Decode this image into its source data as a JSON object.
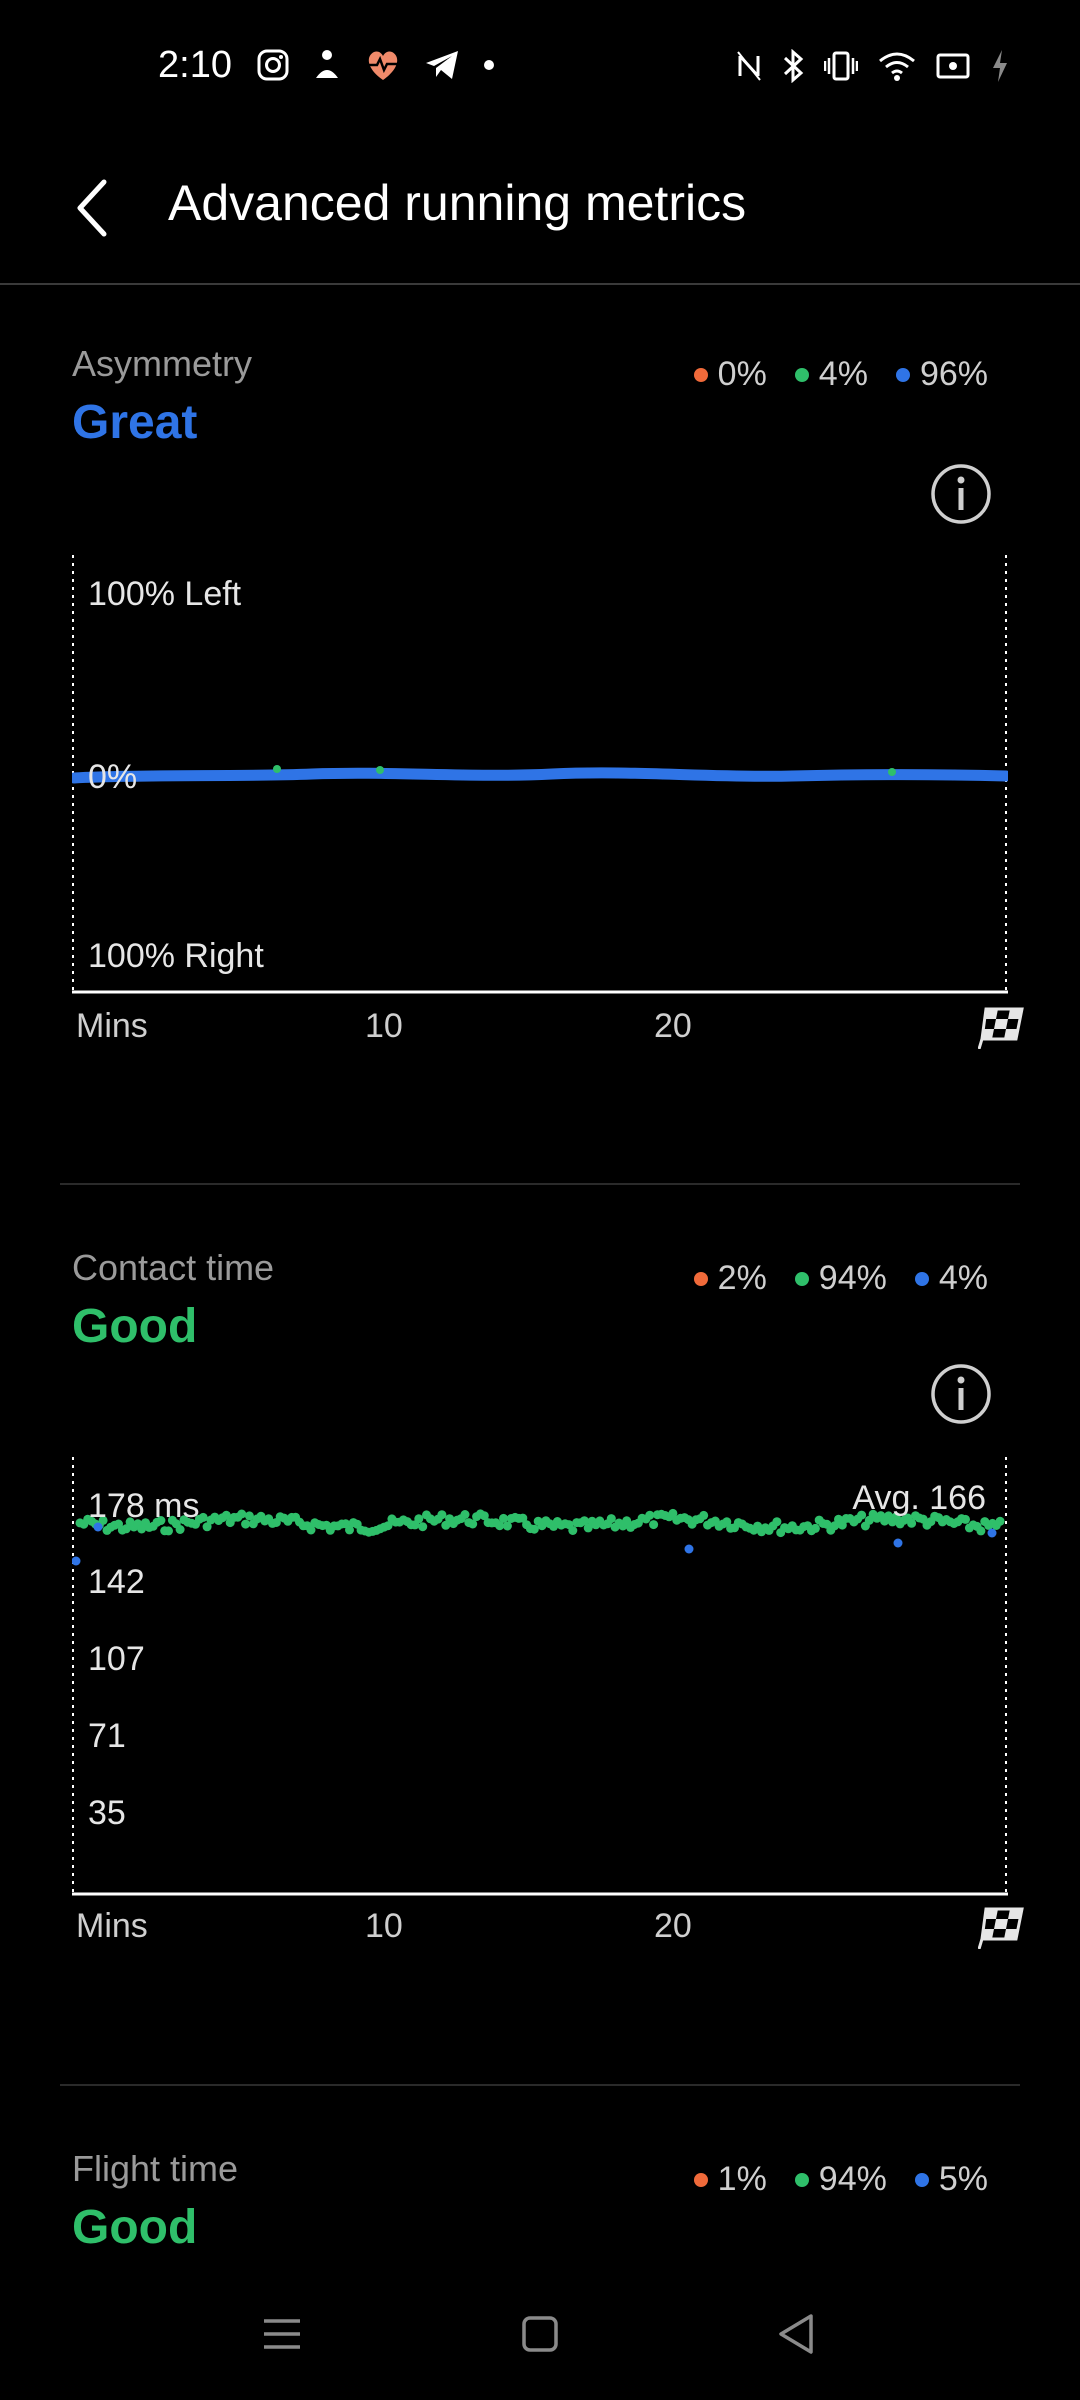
{
  "status_bar": {
    "time": "2:10"
  },
  "header": {
    "title": "Advanced running metrics"
  },
  "colors": {
    "orange": "#f06a3a",
    "green": "#2fbf6a",
    "blue": "#2f74e6",
    "grey": "#9a9a9a"
  },
  "sections": [
    {
      "name": "Asymmetry",
      "rating": "Great",
      "legend": [
        "0%",
        "4%",
        "96%"
      ],
      "y_labels": {
        "top": "100% Left",
        "mid": "0%",
        "bottom": "100% Right"
      },
      "x_labels": [
        "Mins",
        "10",
        "20"
      ]
    },
    {
      "name": "Contact time",
      "rating": "Good",
      "legend": [
        "2%",
        "94%",
        "4%"
      ],
      "y_labels": [
        "178 ms",
        "142",
        "107",
        "71",
        "35"
      ],
      "avg_label": "Avg. 166",
      "x_labels": [
        "Mins",
        "10",
        "20"
      ]
    },
    {
      "name": "Flight time",
      "rating": "Good",
      "legend": [
        "1%",
        "94%",
        "5%"
      ]
    }
  ]
}
